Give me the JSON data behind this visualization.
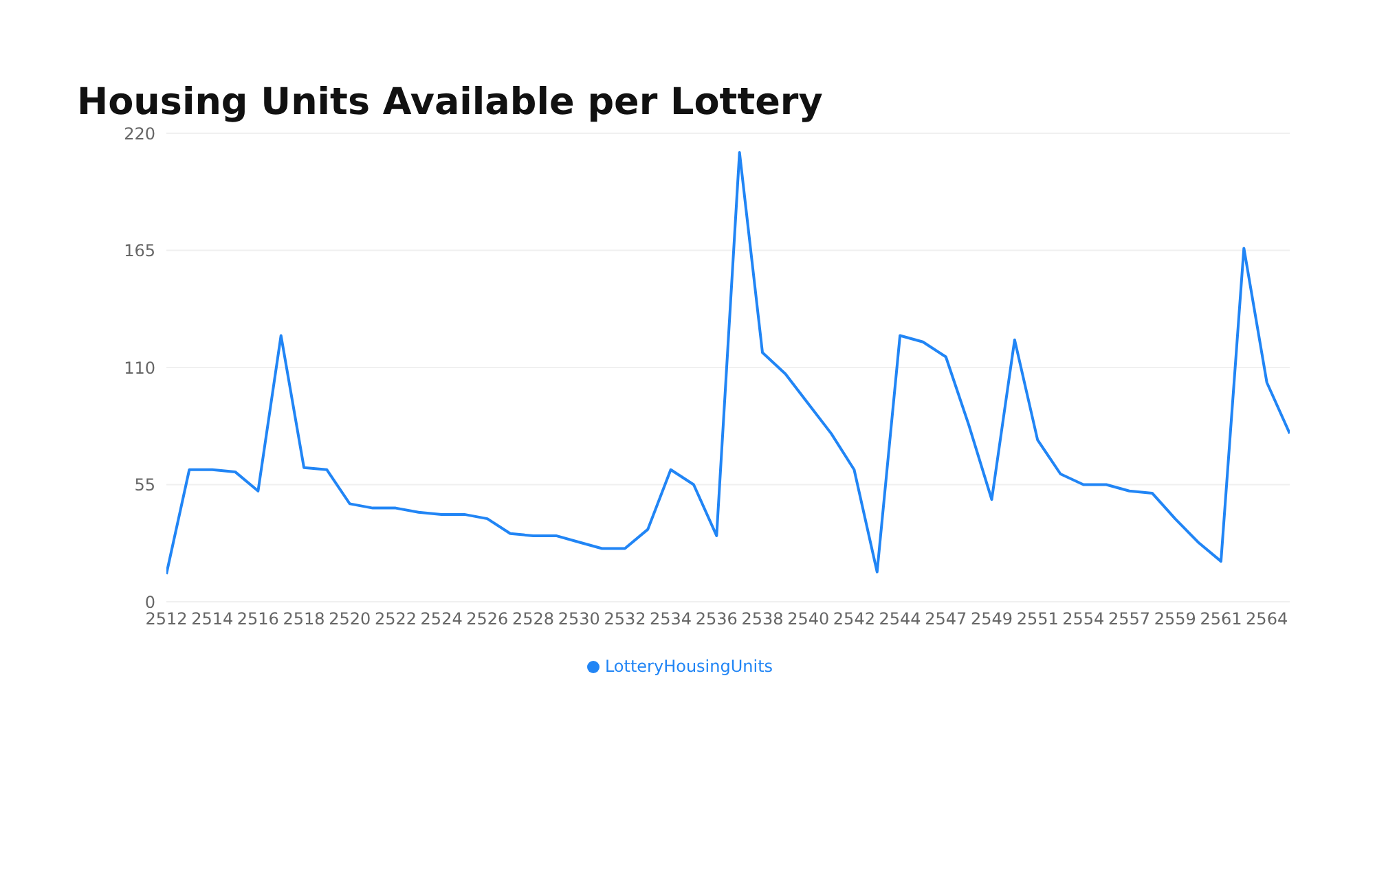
{
  "chart_data": {
    "type": "line",
    "title": "Housing Units Available per Lottery",
    "categories": [
      "2512",
      null,
      "2514",
      null,
      "2516",
      null,
      "2518",
      null,
      "2520",
      null,
      "2522",
      null,
      "2524",
      null,
      "2526",
      null,
      "2528",
      null,
      "2530",
      null,
      "2532",
      null,
      "2534",
      null,
      "2536",
      null,
      "2538",
      null,
      "2540",
      null,
      "2542",
      null,
      "2544",
      null,
      "2547",
      null,
      "2549",
      null,
      "2551",
      null,
      "2554",
      null,
      "2557",
      null,
      "2559",
      null,
      "2561",
      null,
      "2564",
      null
    ],
    "series": [
      {
        "name": "LotteryHousingUnits",
        "color": "#2185f5",
        "values": [
          13,
          62,
          62,
          61,
          52,
          125,
          63,
          62,
          46,
          44,
          44,
          42,
          41,
          41,
          39,
          32,
          31,
          31,
          28,
          25,
          25,
          34,
          62,
          55,
          31,
          211,
          117,
          107,
          93,
          79,
          62,
          14,
          125,
          122,
          115,
          83,
          48,
          123,
          76,
          60,
          55,
          55,
          52,
          51,
          39,
          28,
          19,
          166,
          103,
          79
        ]
      }
    ],
    "ylim": [
      0,
      220
    ],
    "yticks": [
      0,
      55,
      110,
      165,
      220
    ],
    "grid": "y",
    "legend": "bottom",
    "marker": "none",
    "line_style": "solid"
  }
}
